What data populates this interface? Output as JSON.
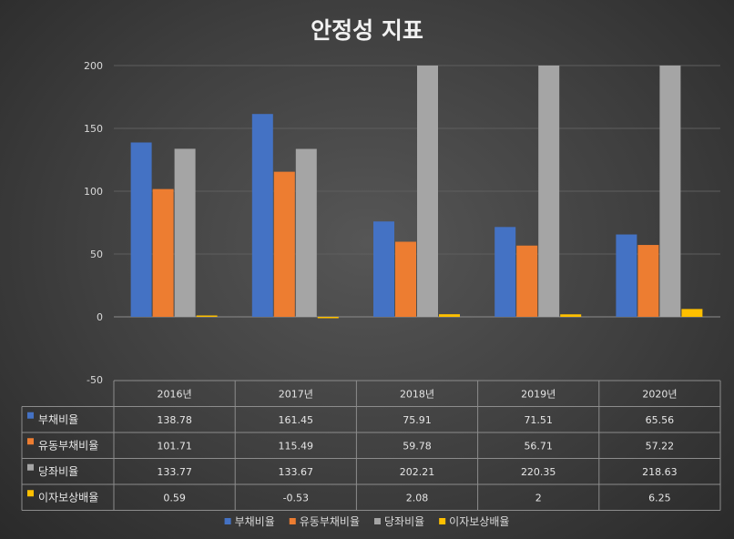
{
  "chart_data": {
    "type": "bar",
    "title": "안정성 지표",
    "categories": [
      "2016년",
      "2017년",
      "2018년",
      "2019년",
      "2020년"
    ],
    "ylim": [
      -50,
      200
    ],
    "yticks": [
      -50,
      0,
      50,
      100,
      150,
      200
    ],
    "grid": true,
    "legend": "bottom",
    "series": [
      {
        "name": "부채비율",
        "color": "#4472c4",
        "values": [
          138.78,
          161.45,
          75.91,
          71.51,
          65.56
        ],
        "labels": [
          "138.78",
          "161.45",
          "75.91",
          "71.51",
          "65.56"
        ]
      },
      {
        "name": "유동부채비율",
        "color": "#ed7d31",
        "values": [
          101.71,
          115.49,
          59.78,
          56.71,
          57.22
        ],
        "labels": [
          "101.71",
          "115.49",
          "59.78",
          "56.71",
          "57.22"
        ]
      },
      {
        "name": "당좌비율",
        "color": "#a5a5a5",
        "values": [
          133.77,
          133.67,
          202.21,
          220.35,
          218.63
        ],
        "labels": [
          "133.77",
          "133.67",
          "202.21",
          "220.35",
          "218.63"
        ]
      },
      {
        "name": "이자보상배율",
        "color": "#ffc000",
        "values": [
          0.59,
          -0.53,
          2.08,
          2,
          6.25
        ],
        "labels": [
          "0.59",
          "-0.53",
          "2.08",
          "2",
          "6.25"
        ]
      }
    ]
  }
}
